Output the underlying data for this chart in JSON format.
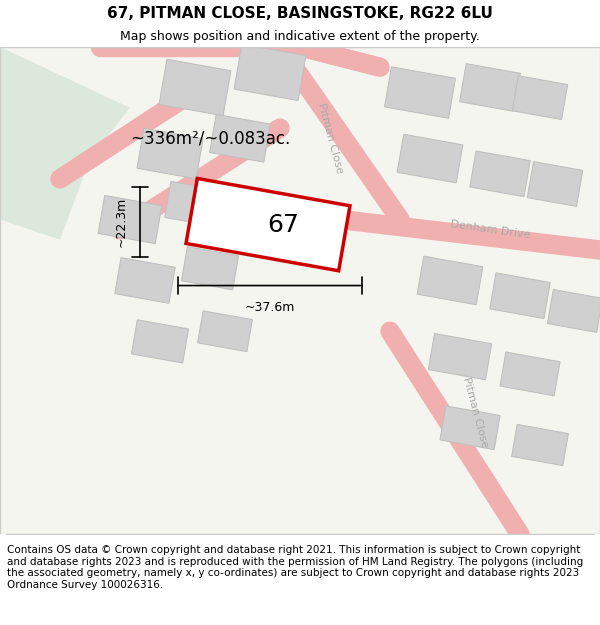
{
  "title": "67, PITMAN CLOSE, BASINGSTOKE, RG22 6LU",
  "subtitle": "Map shows position and indicative extent of the property.",
  "footer": "Contains OS data © Crown copyright and database right 2021. This information is subject to Crown copyright and database rights 2023 and is reproduced with the permission of HM Land Registry. The polygons (including the associated geometry, namely x, y co-ordinates) are subject to Crown copyright and database rights 2023 Ordnance Survey 100026316.",
  "bg_color": "#eef2ee",
  "map_bg": "#f5f5f0",
  "road_color": "#f0b0b0",
  "building_color": "#d8d8d8",
  "highlight_color": "#cc0000",
  "highlight_fill": "#ffffff",
  "street_label_color": "#aaaaaa",
  "area_text": "~336m²/~0.083ac.",
  "plot_label": "67",
  "dim_width": "~37.6m",
  "dim_height": "~22.3m",
  "title_fontsize": 11,
  "subtitle_fontsize": 9,
  "footer_fontsize": 7.5
}
